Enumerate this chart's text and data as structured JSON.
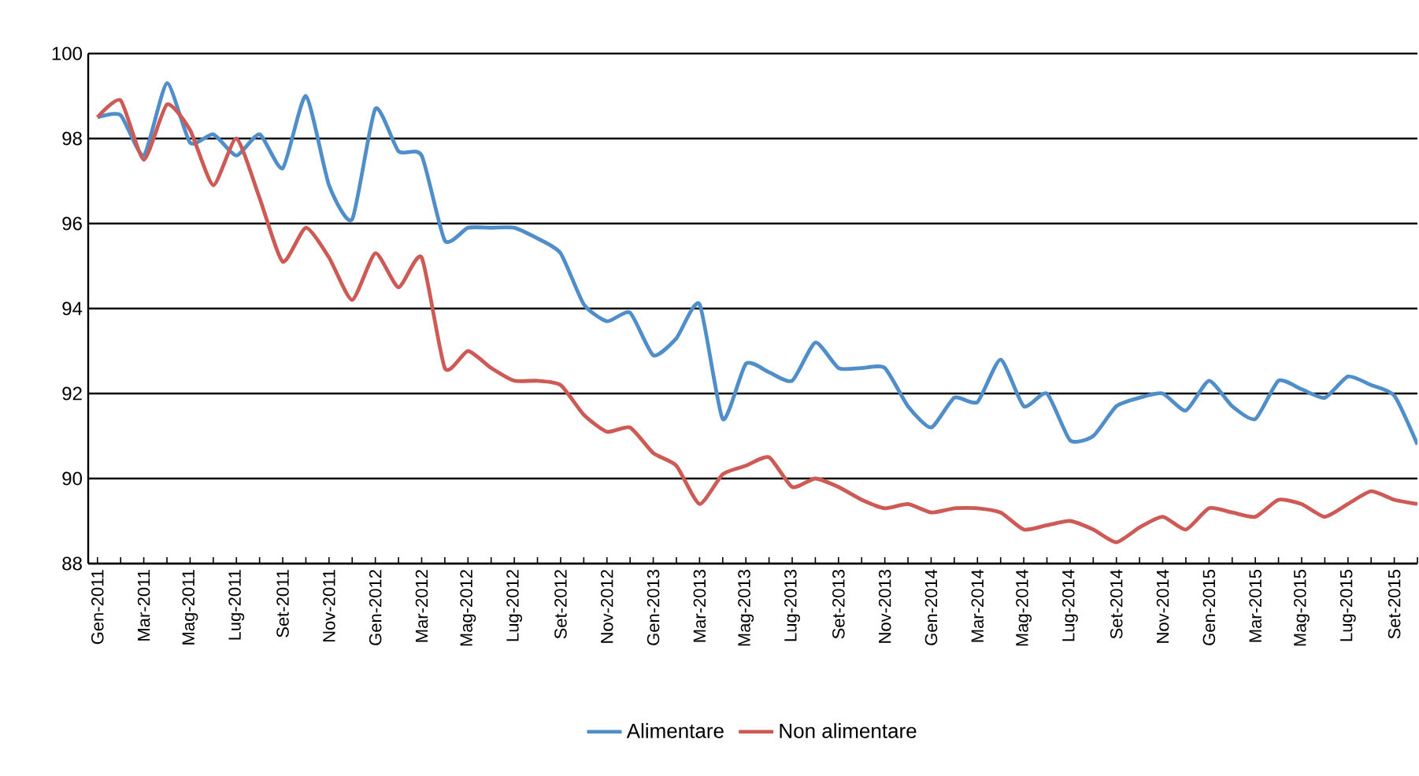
{
  "chart_data": {
    "type": "line",
    "categories": [
      "Gen-2011",
      null,
      "Mar-2011",
      null,
      "Mag-2011",
      null,
      "Lug-2011",
      null,
      "Set-2011",
      null,
      "Nov-2011",
      null,
      "Gen-2012",
      null,
      "Mar-2012",
      null,
      "Mag-2012",
      null,
      "Lug-2012",
      null,
      "Set-2012",
      null,
      "Nov-2012",
      null,
      "Gen-2013",
      null,
      "Mar-2013",
      null,
      "Mag-2013",
      null,
      "Lug-2013",
      null,
      "Set-2013",
      null,
      "Nov-2013",
      null,
      "Gen-2014",
      null,
      "Mar-2014",
      null,
      "Mag-2014",
      null,
      "Lug-2014",
      null,
      "Set-2014",
      null,
      "Nov-2014",
      null,
      "Gen-2015",
      null,
      "Mar-2015",
      null,
      "Mag-2015",
      null,
      "Lug-2015",
      null,
      "Set-2015",
      null
    ],
    "series": [
      {
        "name": "Alimentare",
        "color": "#4f8ec9",
        "values": [
          98.5,
          98.55,
          97.6,
          99.3,
          97.9,
          98.1,
          97.6,
          98.1,
          97.3,
          99.0,
          96.9,
          96.1,
          98.7,
          97.7,
          97.6,
          95.6,
          95.9,
          95.9,
          95.9,
          95.65,
          95.3,
          94.1,
          93.7,
          93.9,
          92.9,
          93.3,
          94.1,
          91.4,
          92.7,
          92.5,
          92.3,
          93.2,
          92.6,
          92.6,
          92.6,
          91.7,
          91.2,
          91.9,
          91.8,
          92.8,
          91.7,
          92.0,
          90.9,
          91.0,
          91.7,
          91.9,
          92.0,
          91.6,
          92.3,
          91.7,
          91.4,
          92.3,
          92.1,
          91.9,
          92.4,
          92.2,
          91.95,
          90.8
        ]
      },
      {
        "name": "Non alimentare",
        "color": "#cd5a55",
        "values": [
          98.5,
          98.9,
          97.5,
          98.8,
          98.2,
          96.9,
          98.0,
          96.6,
          95.1,
          95.9,
          95.2,
          94.2,
          95.3,
          94.5,
          95.2,
          92.6,
          93.0,
          92.6,
          92.3,
          92.3,
          92.2,
          91.5,
          91.1,
          91.2,
          90.6,
          90.3,
          89.4,
          90.1,
          90.3,
          90.5,
          89.8,
          90.0,
          89.8,
          89.5,
          89.3,
          89.4,
          89.2,
          89.3,
          89.3,
          89.2,
          88.8,
          88.9,
          89.0,
          88.8,
          88.5,
          88.85,
          89.1,
          88.8,
          89.3,
          89.2,
          89.1,
          89.5,
          89.4,
          89.1,
          89.4,
          89.7,
          89.5,
          89.4
        ]
      }
    ],
    "ylim": [
      88,
      100
    ],
    "yticks": [
      88,
      90,
      92,
      94,
      96,
      98,
      100
    ],
    "grid": "y",
    "legend": "bottom"
  }
}
